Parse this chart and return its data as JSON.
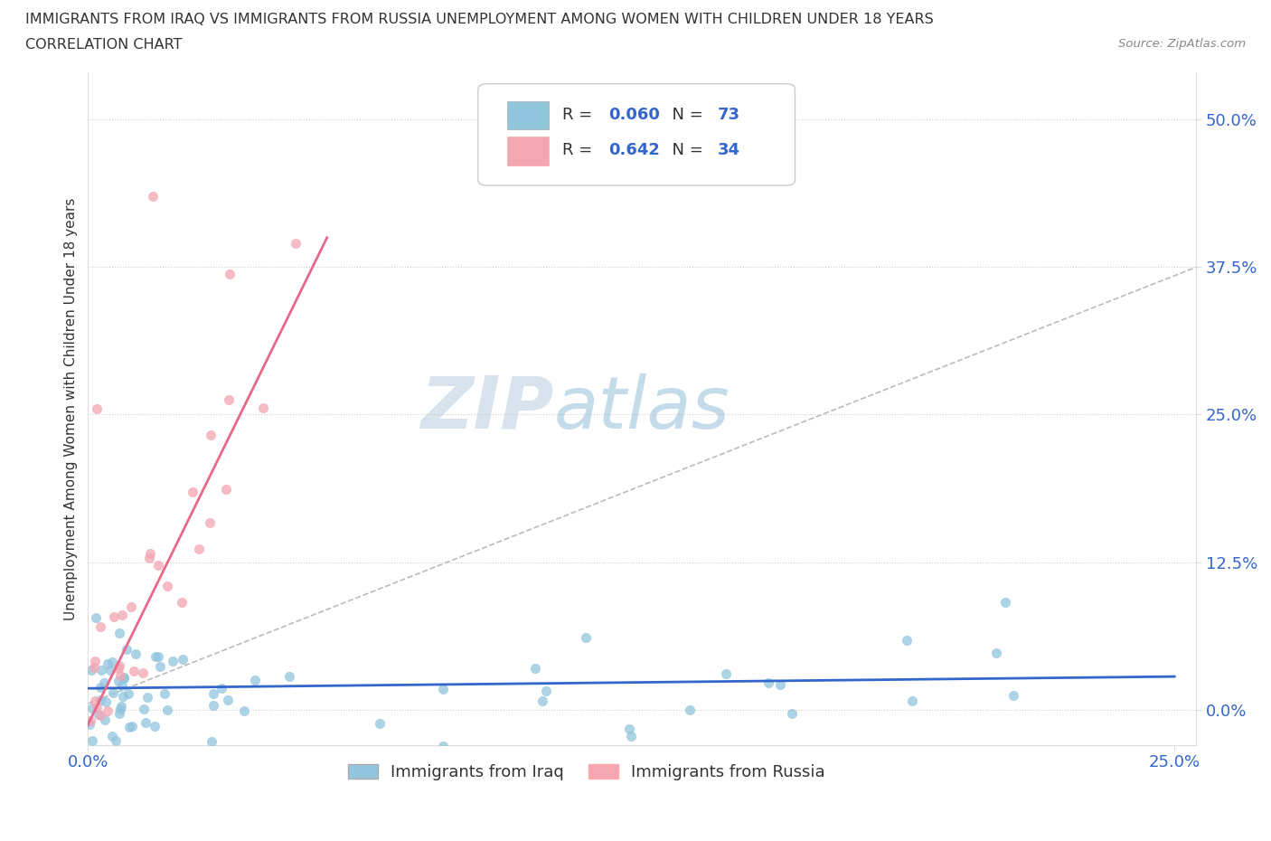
{
  "title_line1": "IMMIGRANTS FROM IRAQ VS IMMIGRANTS FROM RUSSIA UNEMPLOYMENT AMONG WOMEN WITH CHILDREN UNDER 18 YEARS",
  "title_line2": "CORRELATION CHART",
  "source_text": "Source: ZipAtlas.com",
  "watermark_zip": "ZIP",
  "watermark_atlas": "atlas",
  "ylabel": "Unemployment Among Women with Children Under 18 years",
  "xlim": [
    0.0,
    0.255
  ],
  "ylim": [
    -0.03,
    0.54
  ],
  "ytick_vals": [
    0.0,
    0.125,
    0.25,
    0.375,
    0.5
  ],
  "ytick_labels": [
    "0.0%",
    "12.5%",
    "25.0%",
    "37.5%",
    "50.0%"
  ],
  "xtick_vals": [
    0.0,
    0.25
  ],
  "xtick_labels": [
    "0.0%",
    "25.0%"
  ],
  "iraq_color": "#92C5DE",
  "russia_color": "#F4A6B2",
  "iraq_line_color": "#3366CC",
  "russia_line_color": "#E8688A",
  "iraq_dashed_color": "#BBBBBB",
  "iraq_R": "0.060",
  "iraq_N": "73",
  "russia_R": "0.642",
  "russia_N": "34",
  "legend_label_iraq": "Immigrants from Iraq",
  "legend_label_russia": "Immigrants from Russia",
  "stat_color": "#3366CC",
  "watermark_color": "#C8D8E8",
  "background_color": "#FFFFFF",
  "grid_color": "#CCCCCC",
  "axis_label_color": "#333333",
  "tick_color": "#3366CC"
}
